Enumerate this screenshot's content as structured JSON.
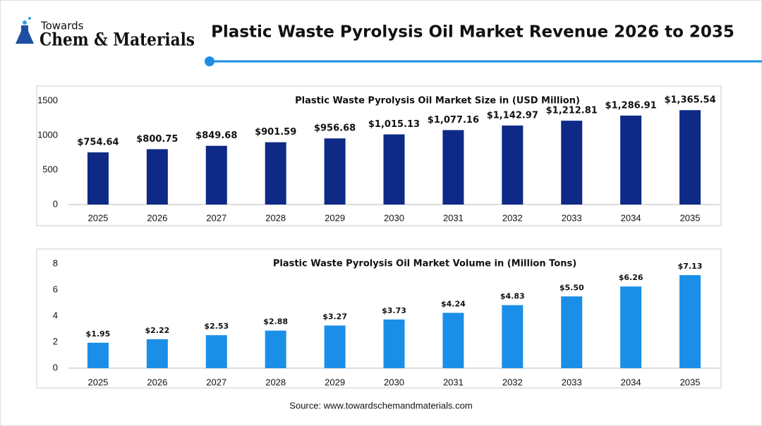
{
  "header": {
    "logo_top": "Towards",
    "logo_main": "Chem & Materials",
    "title": "Plastic Waste Pyrolysis Oil Market Revenue 2026 to 2035"
  },
  "chart_data": [
    {
      "type": "bar",
      "title": "Plastic Waste Pyrolysis Oil Market Size in (USD Million)",
      "categories": [
        "2025",
        "2026",
        "2027",
        "2028",
        "2029",
        "2030",
        "2031",
        "2032",
        "2033",
        "2034",
        "2035"
      ],
      "values": [
        754.64,
        800.75,
        849.68,
        901.59,
        956.68,
        1015.13,
        1077.16,
        1142.97,
        1212.81,
        1286.91,
        1365.54
      ],
      "value_labels": [
        "$754.64",
        "$800.75",
        "$849.68",
        "$901.59",
        "$956.68",
        "$1,015.13",
        "$1,077.16",
        "$1,142.97",
        "$1,212.81",
        "$1,286.91",
        "$1,365.54"
      ],
      "color": "#0e2a86",
      "ylim": [
        0,
        1500
      ],
      "yticks": [
        0,
        500,
        1000,
        1500
      ]
    },
    {
      "type": "bar",
      "title": "Plastic Waste Pyrolysis Oil Market Volume in (Million Tons)",
      "categories": [
        "2025",
        "2026",
        "2027",
        "2028",
        "2029",
        "2030",
        "2031",
        "2032",
        "2033",
        "2034",
        "2035"
      ],
      "values": [
        1.95,
        2.22,
        2.53,
        2.88,
        3.27,
        3.73,
        4.24,
        4.83,
        5.5,
        6.26,
        7.13
      ],
      "value_labels": [
        "$1.95",
        "$2.22",
        "$2.53",
        "$2.88",
        "$3.27",
        "$3.73",
        "$4.24",
        "$4.83",
        "$5.50",
        "$6.26",
        "$7.13"
      ],
      "color": "#1b8fe8",
      "ylim": [
        0,
        8
      ],
      "yticks": [
        0,
        2,
        4,
        6,
        8
      ]
    }
  ],
  "source": "Source: www.towardschemandmaterials.com"
}
